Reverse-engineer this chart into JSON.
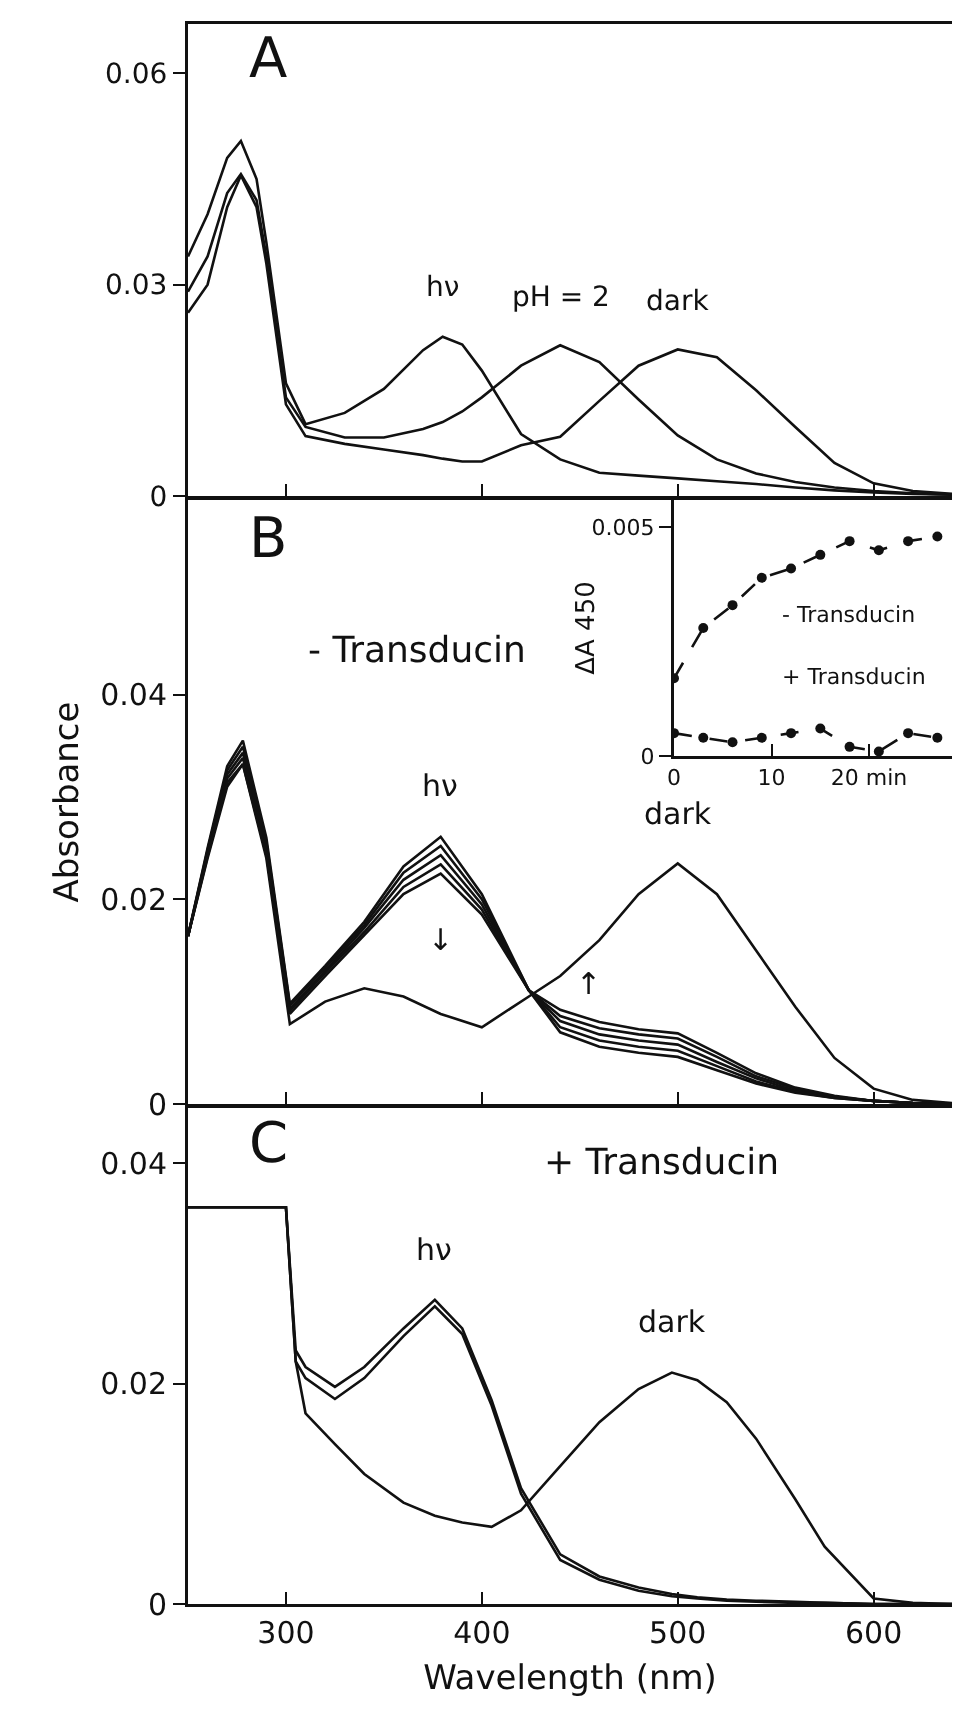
{
  "chart_data": [
    {
      "type": "line",
      "title": "A",
      "x": [
        250,
        260,
        270,
        277,
        285,
        290,
        300,
        310,
        330,
        350,
        370,
        380,
        390,
        400,
        420,
        440,
        460,
        480,
        500,
        520,
        540,
        560,
        580,
        600,
        620,
        640
      ],
      "xlim": [
        250,
        640
      ],
      "xticks": [
        300,
        400,
        500,
        600
      ],
      "ylim": [
        0,
        0.067
      ],
      "yticks": [
        0,
        0.03,
        0.06
      ],
      "tick_labels": "y",
      "marker": "none",
      "line_style": "solid",
      "series": [
        {
          "name": "hν",
          "color": "#111111",
          "values": [
            0.034,
            0.04,
            0.048,
            0.0504,
            0.045,
            0.036,
            0.016,
            0.0102,
            0.0118,
            0.0152,
            0.0207,
            0.0226,
            0.0215,
            0.0178,
            0.0088,
            0.0052,
            0.0033,
            0.0029,
            0.0025,
            0.0021,
            0.0017,
            0.0012,
            0.0008,
            0.0005,
            0.0003,
            0.0002
          ]
        },
        {
          "name": "pH = 2",
          "color": "#111111",
          "values": [
            0.029,
            0.034,
            0.043,
            0.0457,
            0.042,
            0.034,
            0.014,
            0.0098,
            0.0083,
            0.0083,
            0.0095,
            0.0105,
            0.012,
            0.014,
            0.0185,
            0.0214,
            0.019,
            0.0137,
            0.0086,
            0.0052,
            0.0032,
            0.002,
            0.0012,
            0.0007,
            0.0004,
            0.0002
          ]
        },
        {
          "name": "dark",
          "color": "#111111",
          "values": [
            0.026,
            0.03,
            0.041,
            0.0455,
            0.041,
            0.033,
            0.013,
            0.0085,
            0.0074,
            0.0066,
            0.0058,
            0.0053,
            0.0049,
            0.0049,
            0.0072,
            0.0084,
            0.0135,
            0.0185,
            0.0208,
            0.0197,
            0.015,
            0.0098,
            0.0047,
            0.0018,
            0.0007,
            0.0003
          ]
        }
      ]
    },
    {
      "type": "line",
      "title": "B",
      "subtitle": "- Transducin",
      "ylabel": "Absorbance",
      "x": [
        250,
        260,
        270,
        278,
        290,
        302,
        320,
        340,
        360,
        379,
        400,
        424,
        440,
        460,
        480,
        500,
        520,
        540,
        560,
        580,
        600,
        620,
        640
      ],
      "xlim": [
        250,
        640
      ],
      "xticks": [
        300,
        400,
        500,
        600
      ],
      "ylim": [
        0,
        0.059
      ],
      "yticks": [
        0,
        0.02,
        0.04
      ],
      "tick_labels": "y",
      "marker": "none",
      "line_style": "solid",
      "series": [
        {
          "name": "dark",
          "color": "#111111",
          "values": [
            0.0164,
            0.024,
            0.031,
            0.0332,
            0.024,
            0.0078,
            0.01,
            0.0113,
            0.0105,
            0.0088,
            0.0075,
            0.0105,
            0.0125,
            0.016,
            0.0205,
            0.0235,
            0.0205,
            0.015,
            0.0095,
            0.0045,
            0.0015,
            0.0004,
            0.0001
          ]
        },
        {
          "name": "hν",
          "color": "#111111",
          "values": [
            0.0164,
            0.025,
            0.033,
            0.0355,
            0.026,
            0.0098,
            0.0135,
            0.0178,
            0.0232,
            0.0261,
            0.0205,
            0.0111,
            0.007,
            0.0056,
            0.005,
            0.0046,
            0.0033,
            0.002,
            0.0011,
            0.0006,
            0.0003,
            0.0001,
            0
          ]
        },
        {
          "color": "#111111",
          "values": [
            0.0164,
            0.0248,
            0.0326,
            0.0349,
            0.0256,
            0.0096,
            0.0133,
            0.0175,
            0.0226,
            0.0252,
            0.02,
            0.0111,
            0.0075,
            0.0062,
            0.0056,
            0.0052,
            0.0037,
            0.0022,
            0.0012,
            0.0006,
            0.0003,
            0.0001,
            0
          ]
        },
        {
          "color": "#111111",
          "values": [
            0.0164,
            0.0246,
            0.0322,
            0.0343,
            0.0252,
            0.0093,
            0.013,
            0.0172,
            0.0219,
            0.0243,
            0.0195,
            0.0111,
            0.0081,
            0.0068,
            0.0062,
            0.0058,
            0.0041,
            0.0025,
            0.0013,
            0.0007,
            0.0003,
            0.0001,
            0
          ]
        },
        {
          "color": "#111111",
          "values": [
            0.0164,
            0.0244,
            0.0318,
            0.0338,
            0.0248,
            0.0091,
            0.0128,
            0.0168,
            0.0212,
            0.0234,
            0.019,
            0.0111,
            0.0086,
            0.0074,
            0.0068,
            0.0064,
            0.0046,
            0.0027,
            0.0015,
            0.0007,
            0.0003,
            0.0001,
            0
          ]
        },
        {
          "color": "#111111",
          "values": [
            0.0164,
            0.0242,
            0.0314,
            0.0332,
            0.0244,
            0.0088,
            0.0125,
            0.0165,
            0.0205,
            0.0225,
            0.0185,
            0.0111,
            0.0092,
            0.008,
            0.0073,
            0.0069,
            0.005,
            0.003,
            0.0016,
            0.0008,
            0.0003,
            0.0001,
            0
          ]
        }
      ],
      "annotations": [
        "↓",
        "↑"
      ]
    },
    {
      "type": "line",
      "ylabel": "ΔA 450",
      "x": [
        0,
        3,
        6,
        9,
        12,
        15,
        18,
        21,
        24,
        27
      ],
      "xlim": [
        0,
        28.5
      ],
      "xticks": [
        0,
        10,
        {
          "value": 20,
          "label": "20 min"
        }
      ],
      "ylim": [
        0,
        0.0056
      ],
      "yticks": [
        0,
        0.005
      ],
      "marker": "circle",
      "line_style": "dashed",
      "series": [
        {
          "name": "- Transducin",
          "color": "#111111",
          "values": [
            0.0017,
            0.0028,
            0.0033,
            0.0039,
            0.0041,
            0.0044,
            0.0047,
            0.0045,
            0.0047,
            0.0048
          ]
        },
        {
          "name": "+ Transducin",
          "color": "#111111",
          "values": [
            0.0005,
            0.0004,
            0.0003,
            0.0004,
            0.0005,
            0.0006,
            0.0002,
            0.0001,
            0.0005,
            0.0004
          ]
        }
      ]
    },
    {
      "type": "line",
      "title": "C",
      "subtitle": "+ Transducin",
      "xlabel": "Wavelength (nm)",
      "x": [
        250,
        300,
        305,
        310,
        325,
        340,
        360,
        376,
        390,
        405,
        420,
        440,
        460,
        480,
        497,
        510,
        525,
        540,
        560,
        575,
        600,
        620,
        640
      ],
      "xlim": [
        250,
        640
      ],
      "xticks": [
        300,
        400,
        500,
        600
      ],
      "ylim": [
        0,
        0.045
      ],
      "yticks": [
        0,
        0.02,
        0.04
      ],
      "marker": "none",
      "line_style": "solid",
      "series": [
        {
          "name": "dark",
          "color": "#111111",
          "values": [
            0.036,
            0.036,
            0.022,
            0.0173,
            0.0145,
            0.0118,
            0.0092,
            0.008,
            0.0074,
            0.007,
            0.0085,
            0.0125,
            0.0165,
            0.0195,
            0.021,
            0.0203,
            0.0183,
            0.015,
            0.0095,
            0.0052,
            0.0005,
            0.0001,
            0
          ]
        },
        {
          "name": "hν",
          "color": "#111111",
          "values": [
            0.036,
            0.036,
            0.023,
            0.0215,
            0.0197,
            0.0215,
            0.025,
            0.0276,
            0.025,
            0.0185,
            0.0105,
            0.0045,
            0.0025,
            0.0015,
            0.0009,
            0.0006,
            0.0004,
            0.0003,
            0.0002,
            0.0001,
            0,
            0,
            0
          ]
        },
        {
          "color": "#111111",
          "values": [
            0.036,
            0.036,
            0.022,
            0.0205,
            0.0186,
            0.0205,
            0.0243,
            0.027,
            0.0245,
            0.018,
            0.01,
            0.004,
            0.0022,
            0.0012,
            0.0007,
            0.0005,
            0.0003,
            0.0002,
            0.0001,
            0.0001,
            0,
            0,
            0
          ]
        }
      ]
    }
  ]
}
